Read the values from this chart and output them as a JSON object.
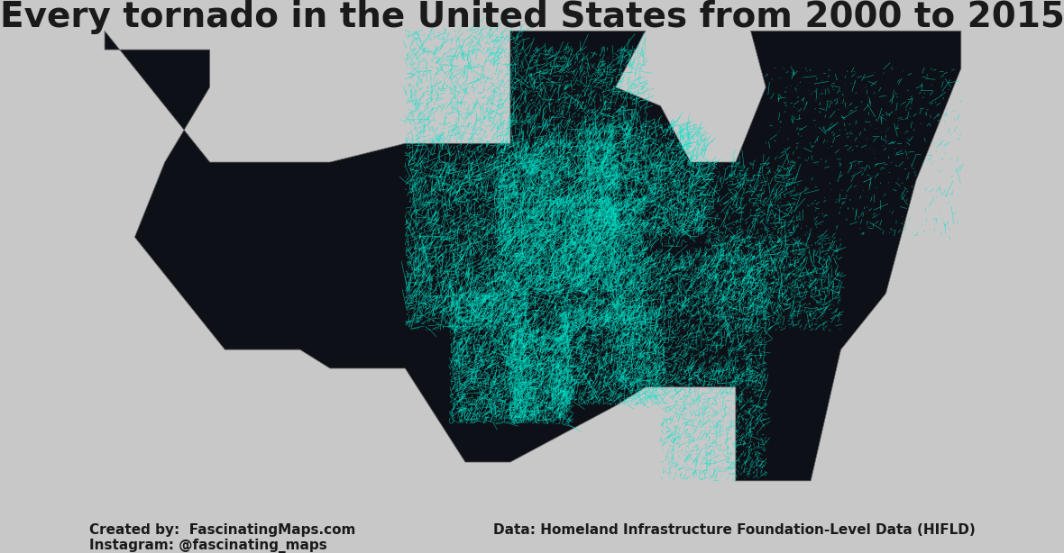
{
  "title": "Every tornado in the United States from 2000 to 2015",
  "title_fontsize": 28,
  "title_fontweight": "bold",
  "title_color": "#1a1a1a",
  "background_color": "#c8c8c8",
  "land_color": "#0d1117",
  "water_color": "#c8c8c8",
  "state_border_color": "#666666",
  "county_border_color": "#333333",
  "tornado_color": "#00e5cc",
  "tornado_alpha": 0.7,
  "tornado_linewidth": 0.4,
  "attribution_left": "Created by:  FascinatingMaps.com\nInstagram: @fascinating_maps",
  "attribution_right": "Data: Homeland Infrastructure Foundation-Level Data (HIFLD)",
  "attribution_fontsize": 11,
  "attribution_color": "#1a1a1a",
  "map_extent": [
    -125,
    -66,
    24,
    50
  ],
  "num_tornadoes": 28000,
  "seed": 42
}
